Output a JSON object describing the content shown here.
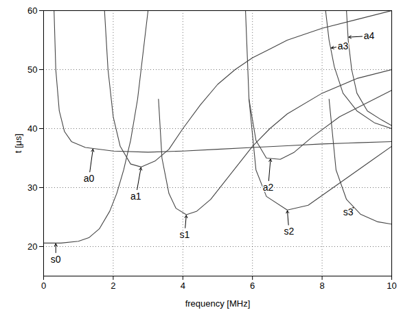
{
  "chart_data": {
    "type": "line",
    "xlabel": "frequency [MHz]",
    "ylabel": "t [μs]",
    "xlim": [
      0,
      10
    ],
    "ylim": [
      15,
      60
    ],
    "xticks": [
      0,
      2,
      4,
      6,
      8,
      10
    ],
    "yticks": [
      20,
      30,
      40,
      50,
      60
    ],
    "grid": true,
    "series": [
      {
        "name": "s0",
        "color": "#444444",
        "x": [
          0,
          0.5,
          1.0,
          1.3,
          1.6,
          1.9,
          2.1,
          2.3,
          2.5,
          2.7,
          2.9,
          3.0
        ],
        "values": [
          20.6,
          20.6,
          20.9,
          21.5,
          23,
          26,
          29,
          33,
          38,
          45,
          55,
          60
        ]
      },
      {
        "name": "a0",
        "color": "#444444",
        "x": [
          0.3,
          0.35,
          0.45,
          0.6,
          0.8,
          1.2,
          2,
          3,
          4,
          5,
          6,
          7,
          8,
          9,
          10
        ],
        "values": [
          60,
          50,
          43,
          39.5,
          37.8,
          36.8,
          36.2,
          36,
          36.2,
          36.5,
          36.8,
          37.1,
          37.4,
          37.6,
          37.8
        ]
      },
      {
        "name": "a1",
        "color": "#444444",
        "x": [
          1.75,
          1.85,
          2.0,
          2.2,
          2.5,
          2.8,
          3.2,
          3.6,
          4.0,
          4.5,
          5.0,
          5.5,
          6.0,
          6.5,
          7.0,
          8.0,
          9.0,
          10.0
        ],
        "values": [
          60,
          50,
          42,
          37,
          34,
          33.5,
          34.5,
          36.5,
          40,
          44,
          47.5,
          50,
          52,
          53.5,
          55,
          57,
          58.5,
          60
        ]
      },
      {
        "name": "s1",
        "color": "#444444",
        "x": [
          3.3,
          3.4,
          3.6,
          3.8,
          4.1,
          4.4,
          4.8,
          5.2,
          5.6,
          6.0,
          6.5,
          7.0,
          8.0,
          9.0,
          10.0
        ],
        "values": [
          45,
          35,
          29,
          26.5,
          25.4,
          26,
          28,
          31,
          34,
          37,
          40,
          42.5,
          46,
          48.5,
          50
        ]
      },
      {
        "name": "a2",
        "color": "#444444",
        "x": [
          5.8,
          5.9,
          6.1,
          6.4,
          6.8,
          7.2,
          7.7,
          8.5,
          9.5,
          10.0
        ],
        "values": [
          60,
          45,
          38,
          35,
          34.8,
          36,
          38.5,
          42,
          45,
          46.5
        ]
      },
      {
        "name": "s2",
        "color": "#444444",
        "x": [
          5.9,
          6.1,
          6.4,
          7.0,
          7.6,
          8.2,
          8.8,
          9.4,
          10.0
        ],
        "values": [
          45,
          33,
          28.5,
          26.2,
          27,
          29.5,
          32,
          34.5,
          37
        ]
      },
      {
        "name": "s3",
        "color": "#444444",
        "x": [
          8.2,
          8.4,
          8.7,
          9.1,
          9.6,
          10.0
        ],
        "values": [
          45,
          33,
          28,
          25.5,
          24.2,
          23.8
        ]
      },
      {
        "name": "a3",
        "color": "#444444",
        "x": [
          8.1,
          8.2,
          8.35,
          8.6,
          9.0,
          9.5,
          10.0
        ],
        "values": [
          60,
          55,
          50.5,
          46,
          43,
          41,
          40
        ]
      },
      {
        "name": "a4",
        "color": "#444444",
        "x": [
          8.7,
          8.75,
          8.85,
          9.0,
          9.3,
          9.7,
          10.0
        ],
        "values": [
          60,
          55,
          50,
          46,
          43,
          41.5,
          40.5
        ]
      }
    ],
    "annotations": [
      {
        "text": "s0",
        "x": 0.35,
        "y": 17.8
      },
      {
        "text": "a0",
        "x": 1.3,
        "y": 31.5
      },
      {
        "text": "a1",
        "x": 2.65,
        "y": 28.5
      },
      {
        "text": "s1",
        "x": 4.05,
        "y": 22
      },
      {
        "text": "a2",
        "x": 6.45,
        "y": 30
      },
      {
        "text": "s2",
        "x": 7.05,
        "y": 22.5
      },
      {
        "text": "s3",
        "x": 8.75,
        "y": 25.8
      },
      {
        "text": "a3",
        "x": 8.6,
        "y": 54
      },
      {
        "text": "a4",
        "x": 9.35,
        "y": 55.7
      }
    ]
  }
}
